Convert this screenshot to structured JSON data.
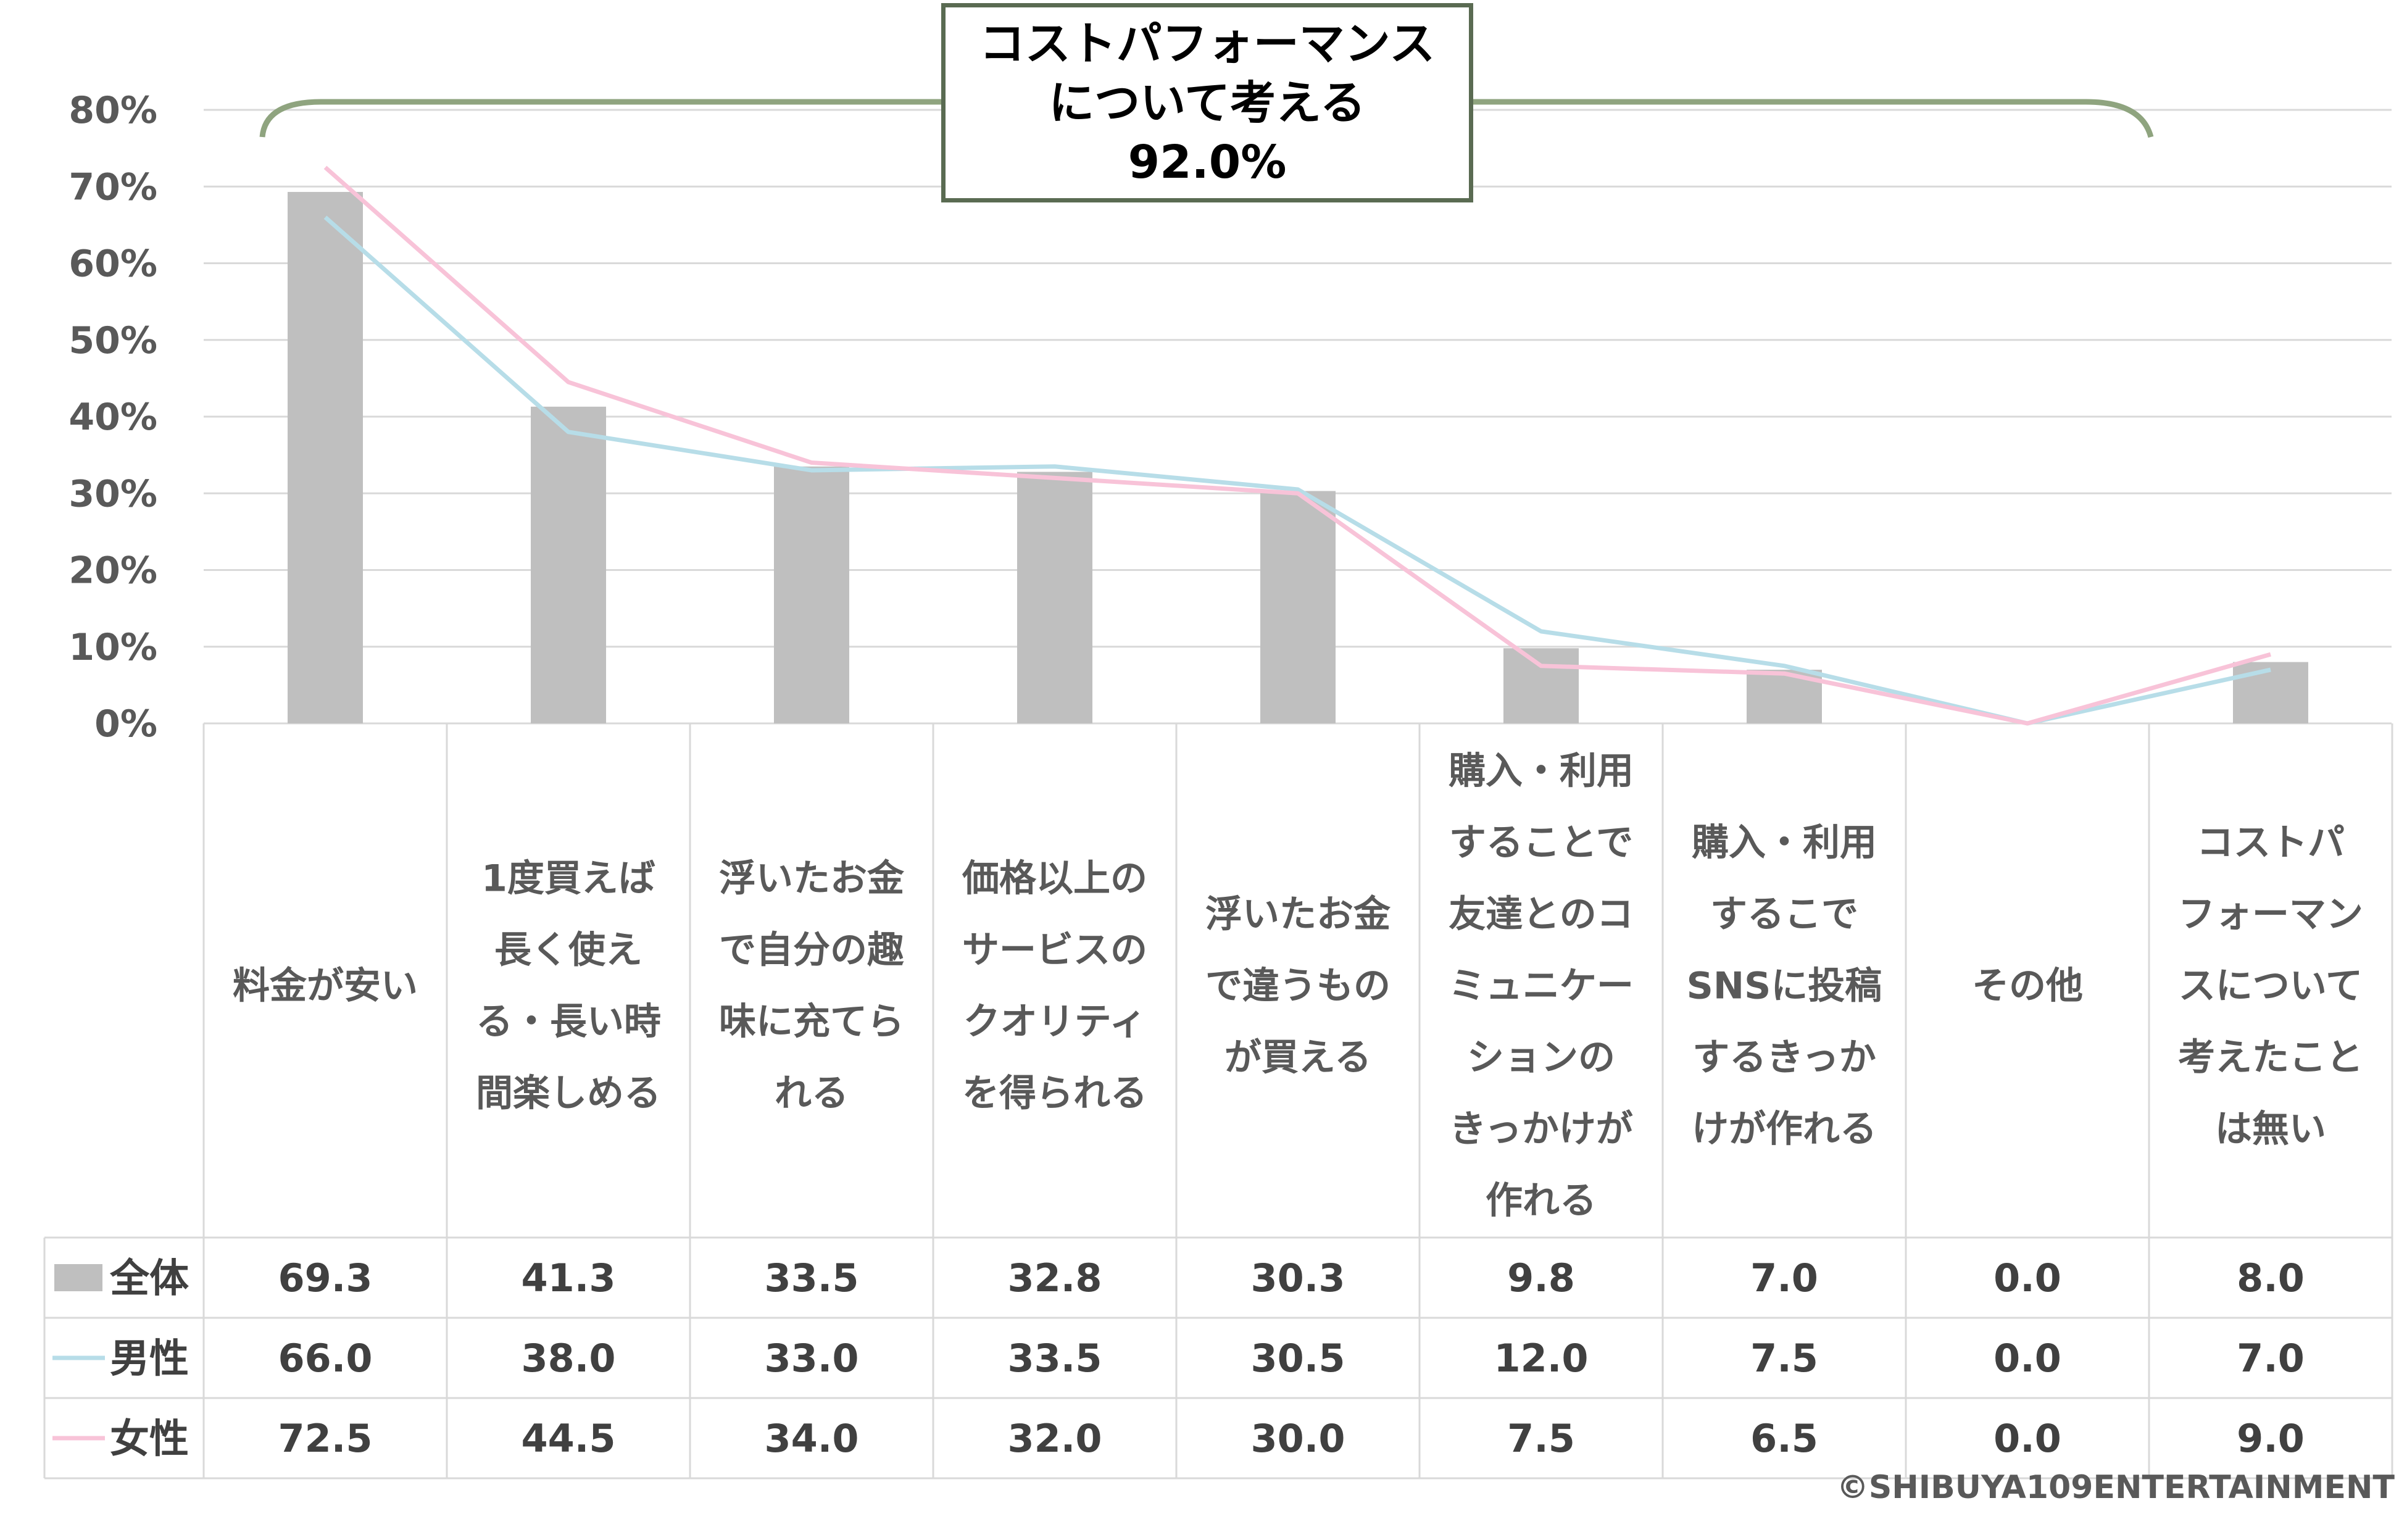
{
  "callout": {
    "lines": [
      "コストパフォーマンス",
      "について考える",
      "92.0%"
    ]
  },
  "copyright": "©SHIBUYA109ENTERTAINMENT",
  "colors": {
    "bar": "#bfbfbf",
    "male": "#b7dde8",
    "female": "#f8c3d8",
    "bracket": "#8fa47f",
    "grid": "#d9d9d9"
  },
  "chart_data": {
    "type": "bar",
    "title": "",
    "ylim": [
      0,
      80
    ],
    "yticks": [
      "0%",
      "10%",
      "20%",
      "30%",
      "40%",
      "50%",
      "60%",
      "70%",
      "80%"
    ],
    "grid": true,
    "categories": [
      [
        "料金が安い"
      ],
      [
        "1度買えば",
        "長く使え",
        "る・長い時",
        "間楽しめる"
      ],
      [
        "浮いたお金",
        "で自分の趣",
        "味に充てら",
        "れる"
      ],
      [
        "価格以上の",
        "サービスの",
        "クオリティ",
        "を得られる"
      ],
      [
        "浮いたお金",
        "で違うもの",
        "が買える"
      ],
      [
        "購入・利用",
        "することで",
        "友達とのコ",
        "ミュニケー",
        "ションの",
        "きっかけが",
        "作れる"
      ],
      [
        "購入・利用",
        "するこで",
        "SNSに投稿",
        "するきっか",
        "けが作れる"
      ],
      [
        "その他"
      ],
      [
        "コストパ",
        "フォーマン",
        "スについて",
        "考えたこと",
        "は無い"
      ]
    ],
    "series": [
      {
        "name": "全体",
        "kind": "bar",
        "values": [
          69.3,
          41.3,
          33.5,
          32.8,
          30.3,
          9.8,
          7.0,
          0.0,
          8.0
        ],
        "labels": [
          "69.3",
          "41.3",
          "33.5",
          "32.8",
          "30.3",
          "9.8",
          "7.0",
          "0.0",
          "8.0"
        ]
      },
      {
        "name": "男性",
        "kind": "line",
        "values": [
          66.0,
          38.0,
          33.0,
          33.5,
          30.5,
          12.0,
          7.5,
          0.0,
          7.0
        ],
        "labels": [
          "66.0",
          "38.0",
          "33.0",
          "33.5",
          "30.5",
          "12.0",
          "7.5",
          "0.0",
          "7.0"
        ]
      },
      {
        "name": "女性",
        "kind": "line",
        "values": [
          72.5,
          44.5,
          34.0,
          32.0,
          30.0,
          7.5,
          6.5,
          0.0,
          9.0
        ],
        "labels": [
          "72.5",
          "44.5",
          "34.0",
          "32.0",
          "30.0",
          "7.5",
          "6.5",
          "0.0",
          "9.0"
        ]
      }
    ]
  }
}
